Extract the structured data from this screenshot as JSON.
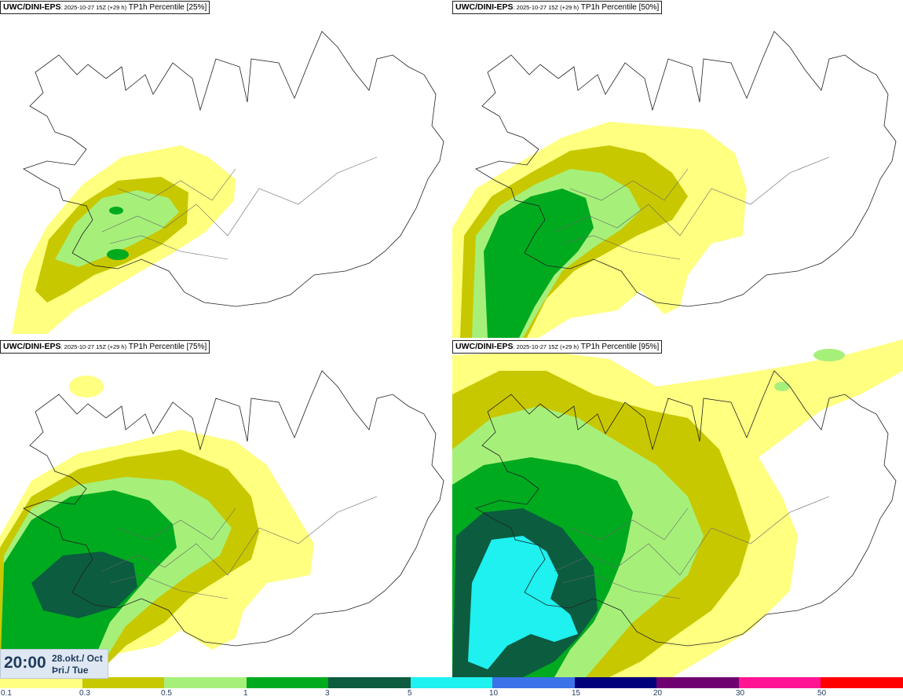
{
  "panels": [
    {
      "model": "UWC/DINI-EPS",
      "run": ": 2025-10-27 15Z (+29 h)",
      "field": "TP1h Percentile [25%]"
    },
    {
      "model": "UWC/DINI-EPS",
      "run": ": 2025-10-27 15Z (+29 h)",
      "field": "TP1h Percentile [50%]"
    },
    {
      "model": "UWC/DINI-EPS",
      "run": ": 2025-10-27 15Z (+29 h)",
      "field": "TP1h Percentile [75%]"
    },
    {
      "model": "UWC/DINI-EPS",
      "run": ": 2025-10-27 15Z (+29 h)",
      "field": "TP1h Percentile [95%]"
    }
  ],
  "valid_time": {
    "time": "20:00",
    "date_line1": "28.okt./ Oct",
    "date_line2": "Þri./ Tue"
  },
  "legend": {
    "labels": [
      "0.1",
      "0.3",
      "0.5",
      "1",
      "3",
      "5",
      "10",
      "15",
      "20",
      "30",
      "50"
    ],
    "colors": [
      "#ffff80",
      "#c8c800",
      "#a6f07a",
      "#00aa1f",
      "#0c5c40",
      "#1ff0f0",
      "#3c73e8",
      "#00007a",
      "#6e0070",
      "#ff1493",
      "#ff0000"
    ]
  },
  "precip_colors": {
    "0.1": "#ffff80",
    "0.3": "#c8c800",
    "0.5": "#a6f07a",
    "1": "#00aa1f",
    "3": "#0c5c40",
    "5": "#1ff0f0"
  }
}
